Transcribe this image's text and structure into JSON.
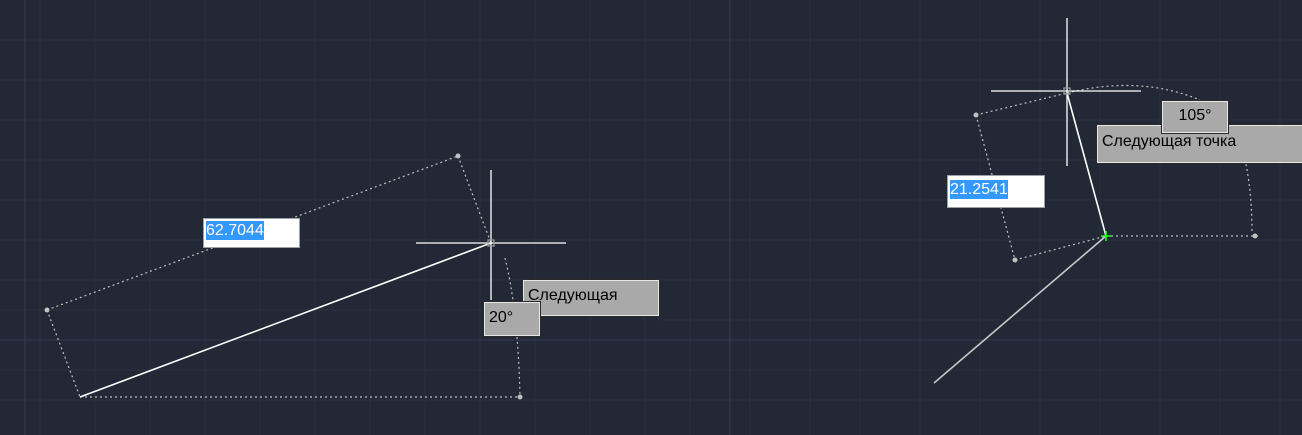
{
  "left": {
    "length_value": "62.7044",
    "angle_value": "20°",
    "prompt": "Следующая"
  },
  "right": {
    "length_value": "21.2541",
    "angle_value": "105°",
    "prompt": "Следующая точка"
  },
  "colors": {
    "background": "#222835",
    "grid": "#2b3140",
    "grid_major": "#363d52",
    "line": "#ffffff",
    "dotted": "#c0c0c0",
    "selection": "#3399ff",
    "snap_marker": "#22ff22"
  }
}
